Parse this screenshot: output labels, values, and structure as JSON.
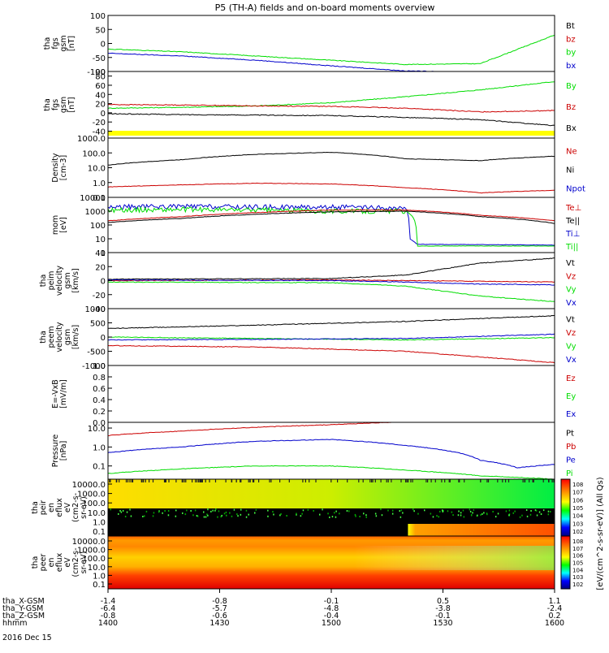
{
  "title": "P5 (TH-A) fields and on-board moments overview",
  "colors": {
    "black": "#000000",
    "red": "#cc0000",
    "green": "#00dd00",
    "blue": "#0000cc",
    "yellow": "#ffff00"
  },
  "x_ticks": [
    "1400",
    "1430",
    "1500",
    "1530",
    "1600"
  ],
  "date_label": "2016 Dec 15",
  "ephemeris": [
    {
      "label": "tha_X-GSM",
      "values": [
        "-1.4",
        "-0.8",
        "-0.1",
        "0.5",
        "1.1"
      ]
    },
    {
      "label": "tha_Y-GSM",
      "values": [
        "-6.4",
        "-5.7",
        "-4.8",
        "-3.8",
        "-2.4"
      ]
    },
    {
      "label": "tha_Z-GSM",
      "values": [
        "-0.8",
        "-0.6",
        "-0.4",
        "-0.1",
        "0.2"
      ]
    },
    {
      "label": "hhmm",
      "values": [
        "1400",
        "1430",
        "1500",
        "1530",
        "1600"
      ]
    }
  ],
  "colorbar_label": "[eV/(cm^2-s-sr-eV)] (All Qs)",
  "colorbar_ticks": [
    "10^8",
    "10^7",
    "10^6",
    "10^5",
    "10^4",
    "10^3",
    "10^2"
  ],
  "chart_data": [
    {
      "type": "line",
      "ylabel": [
        "tha",
        "fgs",
        "gsm",
        "[nT]"
      ],
      "ylim": [
        -100,
        100
      ],
      "ticks": [
        "100",
        "50",
        "0",
        "-50",
        "-100"
      ],
      "legend": [
        {
          "name": "Bt",
          "color": "black"
        },
        {
          "name": "bz",
          "color": "red"
        },
        {
          "name": "by",
          "color": "green"
        },
        {
          "name": "bx",
          "color": "blue"
        }
      ],
      "series": [
        {
          "name": "by",
          "color": "green",
          "x": [
            0,
            10,
            20,
            30,
            40,
            50,
            60
          ],
          "y": [
            -20,
            -30,
            -45,
            -60,
            -75,
            -72,
            30
          ]
        },
        {
          "name": "bx",
          "color": "blue",
          "x": [
            0,
            10,
            20,
            30,
            40,
            44
          ],
          "y": [
            -35,
            -45,
            -60,
            -80,
            -98,
            -100
          ]
        }
      ]
    },
    {
      "type": "line",
      "ylabel": [
        "tha",
        "fgs",
        "gsm",
        "[nT]"
      ],
      "ylim": [
        -55,
        90
      ],
      "ticks": [
        "90",
        "80",
        "60",
        "40",
        "20",
        "0",
        "-20",
        "-40"
      ],
      "legend": [
        {
          "name": "By",
          "color": "green"
        },
        {
          "name": "Bz",
          "color": "red"
        },
        {
          "name": "Bx",
          "color": "black"
        }
      ],
      "series": [
        {
          "name": "By",
          "color": "green",
          "x": [
            0,
            10,
            20,
            30,
            40,
            50,
            60
          ],
          "y": [
            10,
            12,
            15,
            22,
            35,
            50,
            68
          ]
        },
        {
          "name": "Bz",
          "color": "red",
          "x": [
            0,
            10,
            20,
            30,
            40,
            50,
            60
          ],
          "y": [
            18,
            17,
            15,
            14,
            10,
            2,
            5
          ]
        },
        {
          "name": "Bx",
          "color": "black",
          "x": [
            0,
            10,
            20,
            30,
            40,
            50,
            60
          ],
          "y": [
            -2,
            -4,
            -5,
            -6,
            -10,
            -15,
            -28
          ]
        }
      ]
    },
    {
      "type": "line",
      "ylabel": [
        "Density",
        "[cm-3]"
      ],
      "ylim": [
        0.1,
        1000
      ],
      "log": true,
      "ticks": [
        "1000.0",
        "100.0",
        "10.0",
        "1.0",
        "0.1"
      ],
      "legend": [
        {
          "name": "Ne",
          "color": "red"
        },
        {
          "name": "Ni",
          "color": "black"
        },
        {
          "name": "Npot",
          "color": "blue"
        }
      ],
      "series": [
        {
          "name": "Ni",
          "color": "black",
          "x": [
            0,
            10,
            20,
            30,
            40,
            50,
            60
          ],
          "y": [
            15,
            35,
            80,
            110,
            40,
            30,
            60
          ]
        },
        {
          "name": "Ne",
          "color": "red",
          "x": [
            0,
            10,
            20,
            30,
            40,
            50,
            60
          ],
          "y": [
            0.5,
            0.7,
            0.9,
            0.8,
            0.45,
            0.2,
            0.3
          ]
        }
      ]
    },
    {
      "type": "line",
      "ylabel": [
        "mom",
        "[eV]"
      ],
      "ylim": [
        1,
        10000
      ],
      "log": true,
      "ticks": [
        "10000",
        "1000",
        "100",
        "10",
        "1"
      ],
      "legend": [
        {
          "name": "Te⊥",
          "color": "red"
        },
        {
          "name": "Te||",
          "color": "black"
        },
        {
          "name": "Ti⊥",
          "color": "blue"
        },
        {
          "name": "Ti||",
          "color": "green"
        }
      ],
      "series": [
        {
          "name": "Ti⊥",
          "color": "blue",
          "x": [
            0,
            10,
            20,
            30,
            40,
            40.5,
            41.5,
            60
          ],
          "y": [
            2000,
            2200,
            2000,
            2000,
            1500,
            10,
            4,
            3.5
          ]
        },
        {
          "name": "Ti||",
          "color": "green",
          "x": [
            0,
            10,
            20,
            30,
            40,
            41.5,
            60
          ],
          "y": [
            1200,
            1300,
            1200,
            1000,
            1000,
            3,
            3
          ]
        },
        {
          "name": "Te⊥",
          "color": "red",
          "x": [
            0,
            10,
            20,
            30,
            40,
            50,
            60
          ],
          "y": [
            200,
            400,
            800,
            1200,
            1200,
            500,
            200
          ]
        },
        {
          "name": "Te||",
          "color": "black",
          "x": [
            0,
            10,
            20,
            30,
            40,
            50,
            60
          ],
          "y": [
            150,
            300,
            600,
            900,
            1000,
            400,
            130
          ]
        }
      ]
    },
    {
      "type": "line",
      "ylabel": [
        "tha",
        "peim",
        "velocity",
        "gsm",
        "[km/s]"
      ],
      "ylim": [
        -40,
        40
      ],
      "ticks": [
        "40",
        "20",
        "0",
        "-20",
        "-40"
      ],
      "legend": [
        {
          "name": "Vt",
          "color": "black"
        },
        {
          "name": "Vz",
          "color": "red"
        },
        {
          "name": "Vy",
          "color": "green"
        },
        {
          "name": "Vx",
          "color": "blue"
        }
      ],
      "series": [
        {
          "name": "Vt",
          "color": "black",
          "x": [
            0,
            30,
            40,
            50,
            60
          ],
          "y": [
            2,
            3,
            8,
            25,
            32
          ]
        },
        {
          "name": "Vz",
          "color": "red",
          "x": [
            0,
            30,
            40,
            50,
            60
          ],
          "y": [
            0,
            1,
            0,
            -1,
            -2
          ]
        },
        {
          "name": "Vy",
          "color": "green",
          "x": [
            0,
            30,
            40,
            50,
            60
          ],
          "y": [
            -2,
            -3,
            -8,
            -22,
            -30
          ]
        },
        {
          "name": "Vx",
          "color": "blue",
          "x": [
            0,
            30,
            40,
            50,
            60
          ],
          "y": [
            1,
            0,
            -2,
            -5,
            -6
          ]
        }
      ]
    },
    {
      "type": "line",
      "ylabel": [
        "tha",
        "peem",
        "velocity",
        "gsm",
        "[km/s]"
      ],
      "ylim": [
        -1000,
        1000
      ],
      "ticks": [
        "1000",
        "500",
        "0",
        "-500",
        "-1000"
      ],
      "legend": [
        {
          "name": "Vt",
          "color": "black"
        },
        {
          "name": "Vz",
          "color": "red"
        },
        {
          "name": "Vy",
          "color": "green"
        },
        {
          "name": "Vx",
          "color": "blue"
        }
      ],
      "series": [
        {
          "name": "Vt",
          "color": "black",
          "x": [
            0,
            20,
            40,
            60
          ],
          "y": [
            300,
            420,
            550,
            750
          ]
        },
        {
          "name": "Vy",
          "color": "green",
          "x": [
            0,
            20,
            40,
            60
          ],
          "y": [
            0,
            -50,
            -100,
            -20
          ]
        },
        {
          "name": "Vx",
          "color": "blue",
          "x": [
            0,
            20,
            40,
            60
          ],
          "y": [
            -100,
            -80,
            -50,
            100
          ]
        },
        {
          "name": "Vz",
          "color": "red",
          "x": [
            0,
            20,
            40,
            60
          ],
          "y": [
            -300,
            -350,
            -500,
            -900
          ]
        }
      ]
    },
    {
      "type": "line",
      "ylabel": [
        "E=-VxB",
        "[mV/m]"
      ],
      "ylim": [
        0,
        1
      ],
      "ticks": [
        "1.0",
        "0.8",
        "0.6",
        "0.4",
        "0.2",
        "0.0"
      ],
      "legend": [
        {
          "name": "Ez",
          "color": "red"
        },
        {
          "name": "Ey",
          "color": "green"
        },
        {
          "name": "Ex",
          "color": "blue"
        }
      ],
      "series": []
    },
    {
      "type": "line",
      "ylabel": [
        "Pressure",
        "[nPa]"
      ],
      "ylim": [
        0.02,
        20
      ],
      "log": true,
      "ticks": [
        "10.0",
        "1.0",
        "0.1"
      ],
      "legend": [
        {
          "name": "Pt",
          "color": "black"
        },
        {
          "name": "Pb",
          "color": "red"
        },
        {
          "name": "Pe",
          "color": "blue"
        },
        {
          "name": "Pi",
          "color": "green"
        }
      ],
      "series": [
        {
          "name": "Pb",
          "color": "red",
          "x": [
            0,
            10,
            20,
            30,
            38
          ],
          "y": [
            4,
            7,
            11,
            15,
            20
          ]
        },
        {
          "name": "Pe",
          "color": "blue",
          "x": [
            0,
            10,
            20,
            30,
            40,
            50,
            55,
            60
          ],
          "y": [
            0.5,
            1,
            2,
            2.5,
            1.2,
            0.2,
            0.08,
            0.12
          ]
        },
        {
          "name": "Pi",
          "color": "green",
          "x": [
            0,
            10,
            20,
            30,
            40,
            50,
            60
          ],
          "y": [
            0.04,
            0.07,
            0.1,
            0.1,
            0.06,
            0.03,
            0.02
          ]
        }
      ]
    },
    {
      "type": "heatmap",
      "ylabel": [
        "tha",
        "peir",
        "en",
        "eflux",
        "eV",
        "(cm2-s-",
        "sr-eV)"
      ],
      "ticks": [
        "10000.0",
        "1000.0",
        "100.0",
        "10.0",
        "1.0",
        "0.1"
      ]
    },
    {
      "type": "heatmap",
      "ylabel": [
        "tha",
        "peer",
        "en",
        "eflux",
        "eV",
        "(cm2-s-",
        "sr-eV)"
      ],
      "ticks": [
        "10000.0",
        "1000.0",
        "100.0",
        "10.0",
        "1.0",
        "0.1"
      ]
    }
  ]
}
